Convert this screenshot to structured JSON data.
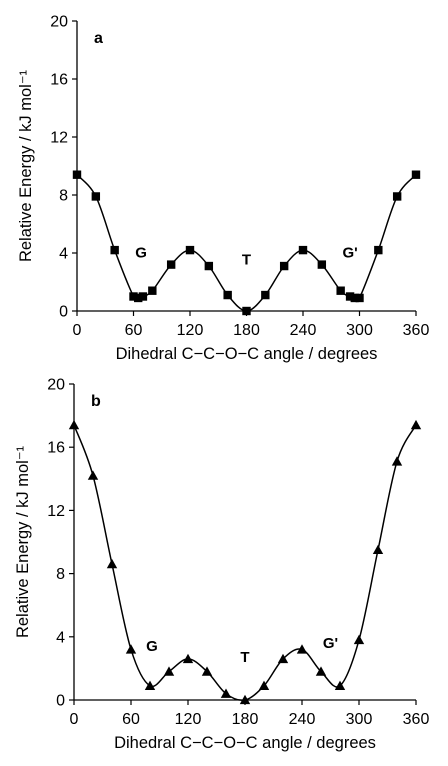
{
  "chart_data": [
    {
      "type": "line",
      "panel_label": "a",
      "marker": "square",
      "xlabel": "Dihedral C−C−O−C angle / degrees",
      "ylabel": "Relative Energy / kJ mol⁻¹",
      "xlim": [
        0,
        360
      ],
      "ylim": [
        0,
        20
      ],
      "xticks": [
        "0",
        "60",
        "120",
        "180",
        "240",
        "300",
        "360"
      ],
      "yticks": [
        "0",
        "4",
        "8",
        "12",
        "16",
        "20"
      ],
      "grid": false,
      "annotations": [
        {
          "text": "G",
          "x": 68,
          "y": 3.7
        },
        {
          "text": "T",
          "x": 180,
          "y": 3.2
        },
        {
          "text": "G'",
          "x": 290,
          "y": 3.7
        }
      ],
      "series": [
        {
          "x": [
            0,
            20,
            40,
            60,
            65,
            70,
            80,
            100,
            120,
            140,
            160,
            180,
            200,
            220,
            240,
            260,
            280,
            290,
            295,
            300,
            320,
            340,
            360
          ],
          "y": [
            9.4,
            7.9,
            4.2,
            1.0,
            0.9,
            1.0,
            1.4,
            3.2,
            4.2,
            3.1,
            1.1,
            0.0,
            1.1,
            3.1,
            4.2,
            3.2,
            1.4,
            1.0,
            0.9,
            0.9,
            4.2,
            7.9,
            9.4
          ]
        }
      ]
    },
    {
      "type": "line",
      "panel_label": "b",
      "marker": "triangle",
      "xlabel": "Dihedral C−C−O−C angle / degrees",
      "ylabel": "Relative Energy / kJ mol⁻¹",
      "xlim": [
        0,
        360
      ],
      "ylim": [
        0,
        20
      ],
      "xticks": [
        "0",
        "60",
        "120",
        "180",
        "240",
        "300",
        "360"
      ],
      "yticks": [
        "0",
        "4",
        "8",
        "12",
        "16",
        "20"
      ],
      "grid": false,
      "annotations": [
        {
          "text": "G",
          "x": 82,
          "y": 3.1
        },
        {
          "text": "T",
          "x": 180,
          "y": 2.4
        },
        {
          "text": "G'",
          "x": 270,
          "y": 3.3
        }
      ],
      "series": [
        {
          "x": [
            0,
            20,
            40,
            60,
            80,
            100,
            120,
            140,
            160,
            180,
            200,
            220,
            240,
            260,
            280,
            300,
            320,
            340,
            360
          ],
          "y": [
            17.4,
            14.2,
            8.6,
            3.2,
            0.9,
            1.8,
            2.6,
            1.8,
            0.4,
            0.0,
            0.9,
            2.6,
            3.2,
            1.8,
            0.9,
            3.8,
            9.5,
            15.1,
            17.4
          ]
        }
      ]
    }
  ]
}
